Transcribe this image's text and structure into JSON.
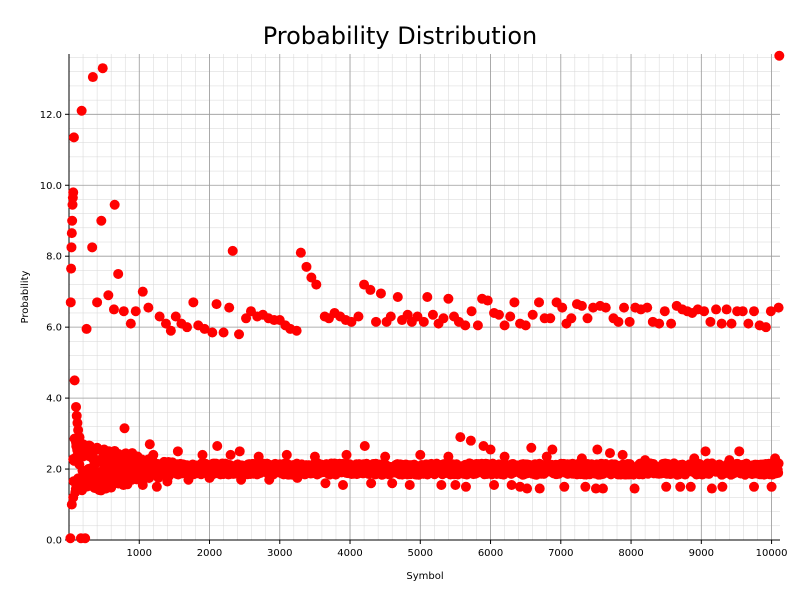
{
  "chart_data": {
    "type": "scatter",
    "title": "Probability Distribution",
    "xlabel": "Symbol",
    "ylabel": "Probability",
    "xlim": [
      0,
      10120
    ],
    "ylim": [
      0,
      13.7
    ],
    "x_ticks": [
      1000,
      2000,
      3000,
      4000,
      5000,
      6000,
      7000,
      8000,
      9000,
      10000
    ],
    "y_ticks": [
      "0.0",
      "2.0",
      "4.0",
      "6.0",
      "8.0",
      "10.0",
      "12.0"
    ],
    "grid": true,
    "marker_color": "#ff0000",
    "series": [
      {
        "points": [
          [
            20,
            0.05
          ],
          [
            25,
            6.7
          ],
          [
            30,
            7.65
          ],
          [
            35,
            8.25
          ],
          [
            40,
            8.65
          ],
          [
            45,
            9.0
          ],
          [
            50,
            9.45
          ],
          [
            55,
            9.65
          ],
          [
            60,
            9.8
          ],
          [
            70,
            11.35
          ],
          [
            80,
            4.5
          ],
          [
            100,
            3.75
          ],
          [
            110,
            3.5
          ],
          [
            120,
            3.3
          ],
          [
            130,
            3.1
          ],
          [
            150,
            2.9
          ],
          [
            170,
            0.05
          ],
          [
            180,
            12.1
          ],
          [
            230,
            0.05
          ],
          [
            250,
            5.95
          ],
          [
            330,
            8.25
          ],
          [
            340,
            13.05
          ],
          [
            400,
            6.7
          ],
          [
            460,
            9.0
          ],
          [
            480,
            13.3
          ],
          [
            560,
            6.9
          ],
          [
            640,
            6.5
          ],
          [
            650,
            9.45
          ],
          [
            700,
            7.5
          ],
          [
            780,
            6.45
          ],
          [
            790,
            3.15
          ],
          [
            880,
            6.1
          ],
          [
            950,
            6.45
          ],
          [
            1050,
            7.0
          ],
          [
            1130,
            6.55
          ],
          [
            1150,
            2.7
          ],
          [
            1250,
            1.5
          ],
          [
            1290,
            6.3
          ],
          [
            1380,
            6.1
          ],
          [
            1450,
            5.9
          ],
          [
            1520,
            6.3
          ],
          [
            1600,
            6.1
          ],
          [
            1680,
            6.0
          ],
          [
            1770,
            6.7
          ],
          [
            1840,
            6.05
          ],
          [
            1930,
            5.95
          ],
          [
            2040,
            5.85
          ],
          [
            2100,
            6.65
          ],
          [
            2110,
            2.65
          ],
          [
            2200,
            5.85
          ],
          [
            2280,
            6.55
          ],
          [
            2330,
            8.15
          ],
          [
            2420,
            5.8
          ],
          [
            2430,
            2.5
          ],
          [
            2520,
            6.25
          ],
          [
            2590,
            6.45
          ],
          [
            2680,
            6.3
          ],
          [
            2760,
            6.35
          ],
          [
            2840,
            6.25
          ],
          [
            2920,
            6.2
          ],
          [
            3000,
            6.2
          ],
          [
            3080,
            6.05
          ],
          [
            3150,
            5.95
          ],
          [
            3240,
            5.9
          ],
          [
            3300,
            8.1
          ],
          [
            3380,
            7.7
          ],
          [
            3450,
            7.4
          ],
          [
            3520,
            7.2
          ],
          [
            3640,
            6.3
          ],
          [
            3700,
            6.25
          ],
          [
            3780,
            6.4
          ],
          [
            3860,
            6.3
          ],
          [
            3940,
            6.2
          ],
          [
            4020,
            6.15
          ],
          [
            4120,
            6.3
          ],
          [
            4200,
            7.2
          ],
          [
            4210,
            2.65
          ],
          [
            4290,
            7.05
          ],
          [
            4370,
            6.15
          ],
          [
            4440,
            6.95
          ],
          [
            4520,
            6.15
          ],
          [
            4580,
            6.3
          ],
          [
            4680,
            6.85
          ],
          [
            4740,
            6.2
          ],
          [
            4820,
            6.35
          ],
          [
            4880,
            6.15
          ],
          [
            4960,
            6.3
          ],
          [
            5050,
            6.15
          ],
          [
            5100,
            6.85
          ],
          [
            5180,
            6.35
          ],
          [
            5260,
            6.1
          ],
          [
            5330,
            6.25
          ],
          [
            5400,
            6.8
          ],
          [
            5480,
            6.3
          ],
          [
            5550,
            6.15
          ],
          [
            5570,
            2.9
          ],
          [
            5640,
            6.05
          ],
          [
            5720,
            2.8
          ],
          [
            5730,
            6.45
          ],
          [
            5820,
            6.05
          ],
          [
            5880,
            6.8
          ],
          [
            5900,
            2.65
          ],
          [
            5960,
            6.75
          ],
          [
            6000,
            2.55
          ],
          [
            6050,
            6.4
          ],
          [
            6120,
            6.35
          ],
          [
            6200,
            6.05
          ],
          [
            6280,
            6.3
          ],
          [
            6340,
            6.7
          ],
          [
            6420,
            6.1
          ],
          [
            6500,
            6.05
          ],
          [
            6580,
            2.6
          ],
          [
            6600,
            6.35
          ],
          [
            6690,
            6.7
          ],
          [
            6770,
            6.25
          ],
          [
            6850,
            6.25
          ],
          [
            6880,
            2.55
          ],
          [
            6940,
            6.7
          ],
          [
            7020,
            6.55
          ],
          [
            7080,
            6.1
          ],
          [
            7150,
            6.25
          ],
          [
            7230,
            6.65
          ],
          [
            7300,
            6.6
          ],
          [
            7380,
            6.25
          ],
          [
            7460,
            6.55
          ],
          [
            7520,
            2.55
          ],
          [
            7560,
            6.6
          ],
          [
            7640,
            6.55
          ],
          [
            7700,
            2.45
          ],
          [
            7750,
            6.25
          ],
          [
            7820,
            6.15
          ],
          [
            7880,
            2.4
          ],
          [
            7900,
            6.55
          ],
          [
            7980,
            6.15
          ],
          [
            8060,
            6.55
          ],
          [
            8140,
            6.5
          ],
          [
            8230,
            6.55
          ],
          [
            8310,
            6.15
          ],
          [
            8400,
            6.1
          ],
          [
            8480,
            6.45
          ],
          [
            8570,
            6.1
          ],
          [
            8650,
            6.6
          ],
          [
            8730,
            6.5
          ],
          [
            8800,
            6.45
          ],
          [
            8870,
            6.4
          ],
          [
            8950,
            6.5
          ],
          [
            9040,
            6.45
          ],
          [
            9060,
            2.5
          ],
          [
            9130,
            6.15
          ],
          [
            9210,
            6.5
          ],
          [
            9290,
            6.1
          ],
          [
            9360,
            6.5
          ],
          [
            9430,
            6.1
          ],
          [
            9510,
            6.45
          ],
          [
            9540,
            2.5
          ],
          [
            9590,
            6.45
          ],
          [
            9670,
            6.1
          ],
          [
            9750,
            6.45
          ],
          [
            9830,
            6.05
          ],
          [
            9920,
            6.0
          ],
          [
            9990,
            6.45
          ],
          [
            10100,
            6.55
          ],
          [
            10110,
            13.65
          ],
          [
            40,
            1.0
          ],
          [
            60,
            1.2
          ],
          [
            90,
            1.35
          ],
          [
            130,
            1.5
          ],
          [
            180,
            1.55
          ],
          [
            250,
            1.6
          ],
          [
            350,
            1.6
          ],
          [
            500,
            1.65
          ],
          [
            700,
            1.7
          ],
          [
            1050,
            1.55
          ],
          [
            1400,
            1.65
          ],
          [
            1700,
            1.7
          ],
          [
            2000,
            1.75
          ],
          [
            2450,
            1.7
          ],
          [
            2850,
            1.7
          ],
          [
            3250,
            1.75
          ],
          [
            3650,
            1.6
          ],
          [
            3900,
            1.55
          ],
          [
            4300,
            1.6
          ],
          [
            4600,
            1.6
          ],
          [
            4850,
            1.55
          ],
          [
            5300,
            1.55
          ],
          [
            5500,
            1.55
          ],
          [
            5650,
            1.5
          ],
          [
            6050,
            1.55
          ],
          [
            6300,
            1.55
          ],
          [
            6420,
            1.5
          ],
          [
            6520,
            1.45
          ],
          [
            6700,
            1.45
          ],
          [
            7050,
            1.5
          ],
          [
            7350,
            1.5
          ],
          [
            7500,
            1.45
          ],
          [
            7600,
            1.45
          ],
          [
            8050,
            1.45
          ],
          [
            8500,
            1.5
          ],
          [
            8700,
            1.5
          ],
          [
            8850,
            1.5
          ],
          [
            9150,
            1.45
          ],
          [
            9300,
            1.5
          ],
          [
            9750,
            1.5
          ],
          [
            10000,
            1.5
          ],
          [
            100,
            2.75
          ],
          [
            200,
            2.7
          ],
          [
            300,
            2.65
          ],
          [
            400,
            2.6
          ],
          [
            500,
            2.55
          ],
          [
            650,
            2.5
          ],
          [
            900,
            2.45
          ],
          [
            1200,
            2.4
          ],
          [
            1550,
            2.5
          ],
          [
            1900,
            2.4
          ],
          [
            2300,
            2.4
          ],
          [
            2700,
            2.35
          ],
          [
            3100,
            2.4
          ],
          [
            3500,
            2.35
          ],
          [
            3950,
            2.4
          ],
          [
            4500,
            2.35
          ],
          [
            5000,
            2.4
          ],
          [
            5400,
            2.35
          ],
          [
            6200,
            2.35
          ],
          [
            6800,
            2.35
          ],
          [
            7300,
            2.3
          ],
          [
            8200,
            2.25
          ],
          [
            8900,
            2.3
          ],
          [
            9400,
            2.25
          ],
          [
            10050,
            2.3
          ]
        ],
        "band": {
          "x_start": 60,
          "x_end": 10100,
          "center": 2.0,
          "spread_start": 0.9,
          "spread_end": 0.16,
          "count": 1600
        }
      }
    ]
  }
}
